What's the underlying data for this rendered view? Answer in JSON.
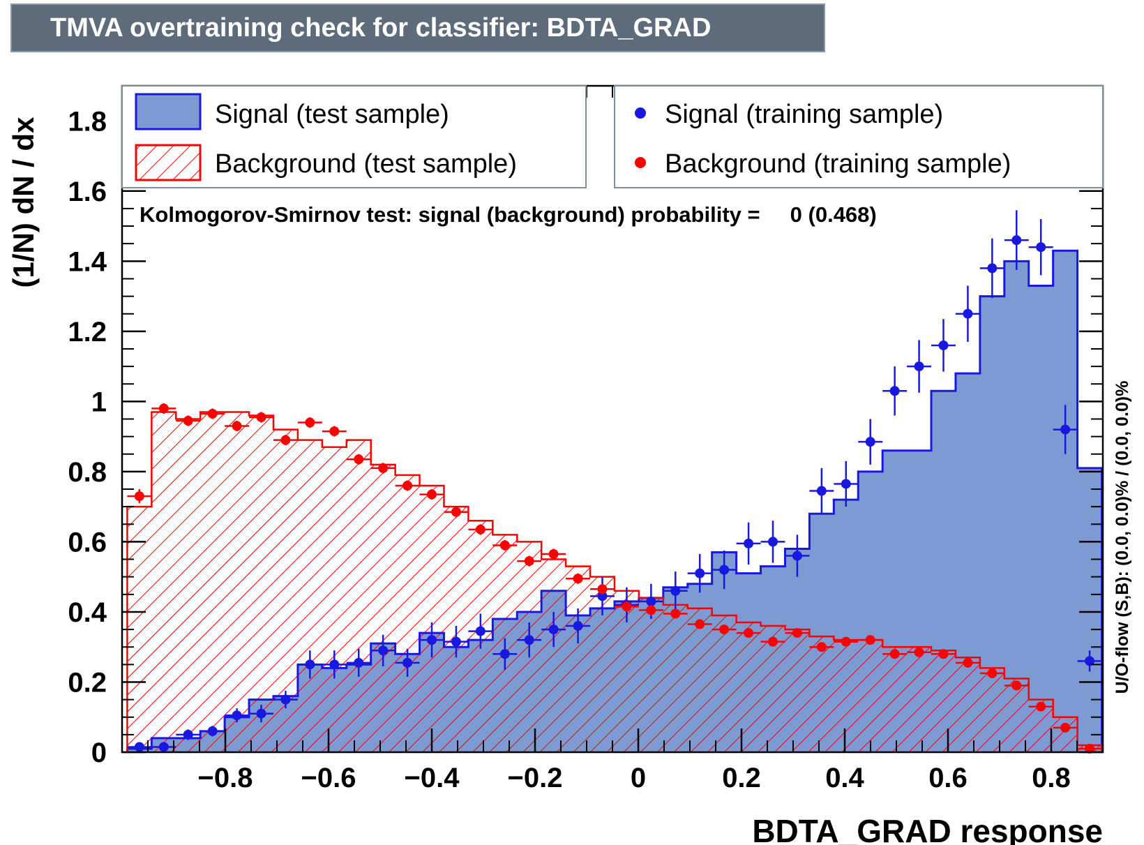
{
  "banner": {
    "title": "TMVA overtraining check for classifier: BDTA_GRAD"
  },
  "chart_data": {
    "type": "histogram",
    "xlabel": "BDTA_GRAD response",
    "ylabel": "(1/N) dN / dx",
    "xlim": [
      -1.0,
      0.9
    ],
    "ylim": [
      0,
      1.9
    ],
    "bin_edges": [
      -0.99,
      -0.9428,
      -0.8956,
      -0.8484,
      -0.8012,
      -0.754,
      -0.7068,
      -0.6596,
      -0.6124,
      -0.5652,
      -0.518,
      -0.4708,
      -0.4236,
      -0.3764,
      -0.3292,
      -0.282,
      -0.2348,
      -0.1876,
      -0.1404,
      -0.0932,
      -0.046,
      0.0012,
      0.0484,
      0.0956,
      0.1428,
      0.19,
      0.2372,
      0.2844,
      0.3316,
      0.3788,
      0.426,
      0.4732,
      0.5204,
      0.5676,
      0.6148,
      0.662,
      0.7092,
      0.7564,
      0.8036,
      0.8508,
      0.898
    ],
    "x_ticks": [
      -0.8,
      -0.6,
      -0.4,
      -0.2,
      0,
      0.2,
      0.4,
      0.6,
      0.8
    ],
    "x_tick_labels": [
      "−0.8",
      "−0.6",
      "−0.4",
      "−0.2",
      "0",
      "0.2",
      "0.4",
      "0.6",
      "0.8"
    ],
    "y_ticks": [
      0,
      0.2,
      0.4,
      0.6,
      0.8,
      1,
      1.2,
      1.4,
      1.6,
      1.8
    ],
    "y_tick_labels": [
      "0",
      "0.2",
      "0.4",
      "0.6",
      "0.8",
      "1",
      "1.2",
      "1.4",
      "1.6",
      "1.8"
    ],
    "series": [
      {
        "name": "Signal (test sample)",
        "kind": "filled-histogram",
        "color": "#1818e0",
        "fill": "#7d9bd2",
        "values": [
          0.01,
          0.04,
          0.04,
          0.06,
          0.1,
          0.15,
          0.16,
          0.25,
          0.24,
          0.25,
          0.31,
          0.28,
          0.34,
          0.3,
          0.32,
          0.38,
          0.4,
          0.46,
          0.39,
          0.41,
          0.43,
          0.44,
          0.47,
          0.48,
          0.57,
          0.51,
          0.53,
          0.58,
          0.68,
          0.72,
          0.8,
          0.86,
          0.86,
          1.03,
          1.08,
          1.3,
          1.4,
          1.33,
          1.43,
          0.81
        ]
      },
      {
        "name": "Background (test sample)",
        "kind": "hatched-histogram",
        "color": "#ff0000",
        "values": [
          0.7,
          0.97,
          0.95,
          0.97,
          0.97,
          0.96,
          0.92,
          0.89,
          0.87,
          0.89,
          0.82,
          0.79,
          0.76,
          0.7,
          0.66,
          0.62,
          0.6,
          0.55,
          0.53,
          0.5,
          0.46,
          0.44,
          0.42,
          0.41,
          0.39,
          0.37,
          0.36,
          0.35,
          0.33,
          0.32,
          0.32,
          0.3,
          0.3,
          0.29,
          0.27,
          0.24,
          0.21,
          0.15,
          0.1,
          0.02
        ]
      },
      {
        "name": "Signal (training sample)",
        "kind": "points",
        "color": "#1818e0",
        "values": [
          0.015,
          0.015,
          0.05,
          0.06,
          0.105,
          0.11,
          0.15,
          0.25,
          0.25,
          0.255,
          0.29,
          0.255,
          0.32,
          0.315,
          0.345,
          0.28,
          0.32,
          0.35,
          0.36,
          0.445,
          0.42,
          0.43,
          0.46,
          0.51,
          0.52,
          0.595,
          0.6,
          0.56,
          0.745,
          0.765,
          0.885,
          1.03,
          1.1,
          1.16,
          1.25,
          1.38,
          1.46,
          1.44,
          0.92,
          0.26
        ],
        "errors": [
          0.01,
          0.01,
          0.015,
          0.015,
          0.02,
          0.025,
          0.025,
          0.04,
          0.04,
          0.04,
          0.045,
          0.04,
          0.05,
          0.045,
          0.05,
          0.045,
          0.05,
          0.05,
          0.05,
          0.055,
          0.05,
          0.05,
          0.055,
          0.055,
          0.055,
          0.06,
          0.06,
          0.06,
          0.065,
          0.065,
          0.065,
          0.07,
          0.075,
          0.075,
          0.08,
          0.085,
          0.085,
          0.08,
          0.07,
          0.03
        ]
      },
      {
        "name": "Background (training sample)",
        "kind": "points",
        "color": "#ff0000",
        "values": [
          0.73,
          0.98,
          0.945,
          0.965,
          0.93,
          0.955,
          0.89,
          0.94,
          0.915,
          0.835,
          0.81,
          0.76,
          0.735,
          0.685,
          0.635,
          0.59,
          0.545,
          0.565,
          0.495,
          0.465,
          0.415,
          0.405,
          0.395,
          0.365,
          0.35,
          0.34,
          0.315,
          0.34,
          0.3,
          0.315,
          0.32,
          0.28,
          0.285,
          0.28,
          0.255,
          0.225,
          0.19,
          0.13,
          0.07,
          0.01
        ],
        "errors": [
          0.02,
          0.015,
          0.015,
          0.015,
          0.015,
          0.015,
          0.015,
          0.015,
          0.015,
          0.015,
          0.015,
          0.015,
          0.015,
          0.015,
          0.015,
          0.015,
          0.015,
          0.015,
          0.015,
          0.015,
          0.015,
          0.015,
          0.012,
          0.012,
          0.012,
          0.012,
          0.012,
          0.012,
          0.012,
          0.012,
          0.012,
          0.012,
          0.012,
          0.012,
          0.012,
          0.01,
          0.01,
          0.01,
          0.008,
          0.005
        ]
      }
    ],
    "legend_left": [
      "Signal (test sample)",
      "Background (test sample)"
    ],
    "legend_right": [
      "Signal (training sample)",
      "Background (training sample)"
    ],
    "ks_text": "Kolmogorov-Smirnov test: signal (background) probability =     0 (0.468)",
    "overflow_text": "U/O-flow (S,B): (0.0, 0.0)% / (0.0, 0.0)%",
    "grid": false,
    "legend_position": "top"
  }
}
